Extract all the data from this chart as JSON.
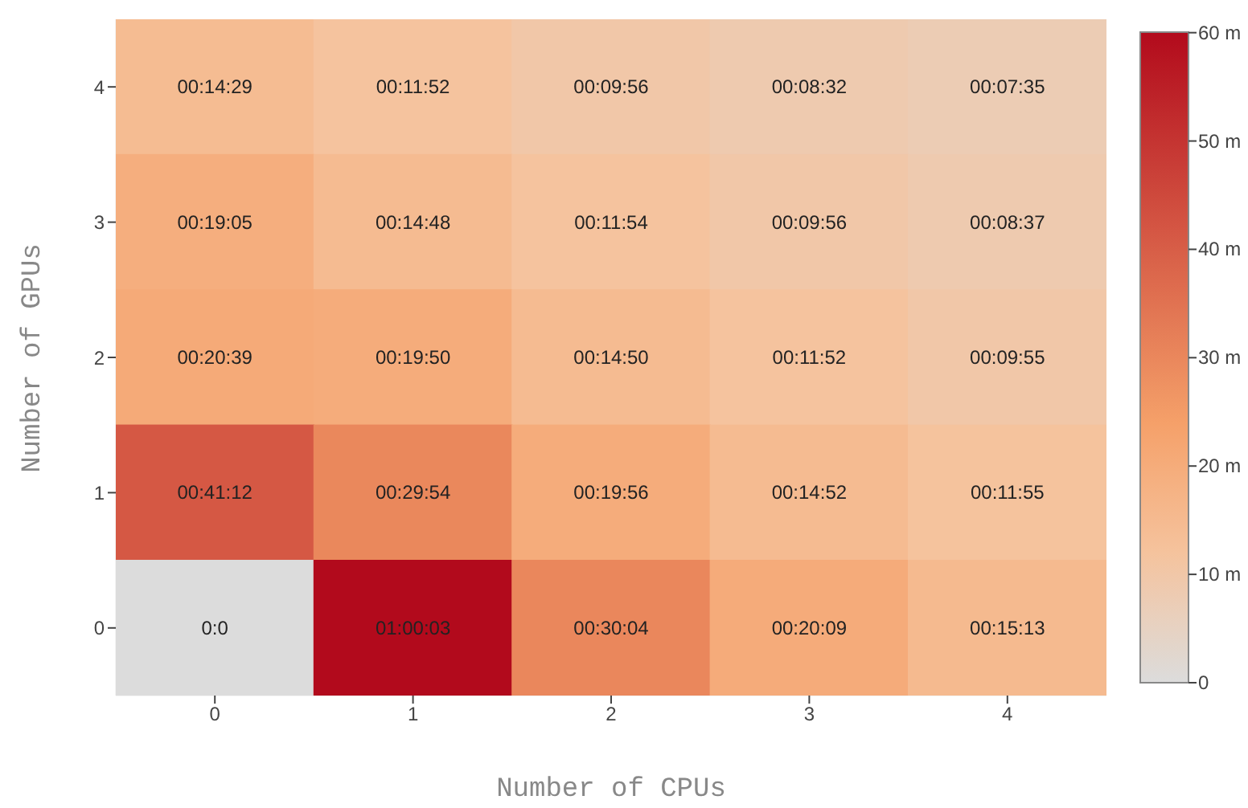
{
  "chart_data": {
    "type": "heatmap",
    "xlabel": "Number of CPUs",
    "ylabel": "Number of GPUs",
    "categories": [
      "0",
      "1",
      "2",
      "3",
      "4"
    ],
    "y_categories": [
      "4",
      "3",
      "2",
      "1",
      "0"
    ],
    "cells": [
      [
        14.483,
        11.867,
        9.933,
        8.533,
        7.583
      ],
      [
        19.083,
        14.8,
        11.9,
        9.933,
        8.617
      ],
      [
        20.65,
        19.833,
        14.833,
        11.867,
        9.917
      ],
      [
        41.2,
        29.9,
        19.933,
        14.867,
        11.917
      ],
      [
        0,
        60.05,
        30.067,
        20.15,
        15.217
      ]
    ],
    "cell_labels": [
      [
        "00:14:29",
        "00:11:52",
        "00:09:56",
        "00:08:32",
        "00:07:35"
      ],
      [
        "00:19:05",
        "00:14:48",
        "00:11:54",
        "00:09:56",
        "00:08:37"
      ],
      [
        "00:20:39",
        "00:19:50",
        "00:14:50",
        "00:11:52",
        "00:09:55"
      ],
      [
        "00:41:12",
        "00:29:54",
        "00:19:56",
        "00:14:52",
        "00:11:55"
      ],
      [
        "0:0",
        "01:00:03",
        "00:30:04",
        "00:20:09",
        "00:15:13"
      ]
    ],
    "clim": [
      0,
      60.05
    ],
    "cticks": [
      0,
      {
        "value": 10,
        "label": "10 m"
      },
      {
        "value": 20,
        "label": "20 m"
      },
      {
        "value": 30,
        "label": "30 m"
      },
      {
        "value": 40,
        "label": "40 m"
      },
      {
        "value": 50,
        "label": "50 m"
      },
      {
        "value": 60,
        "label": "60 m"
      }
    ]
  }
}
